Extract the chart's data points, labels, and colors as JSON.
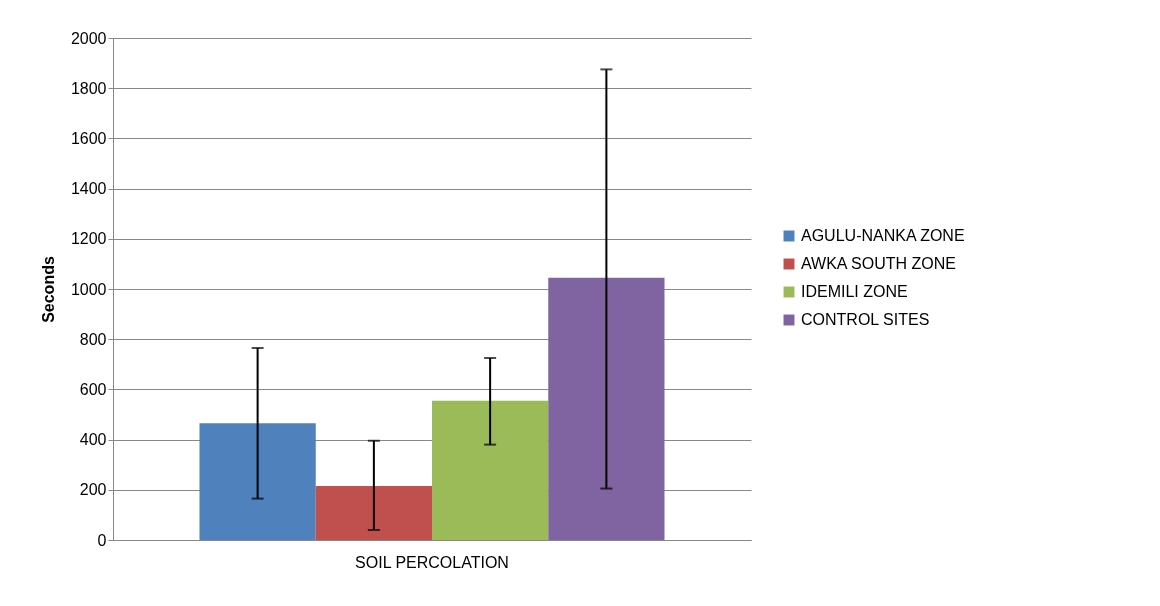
{
  "chart_data": {
    "type": "bar",
    "ylabel": "Seconds",
    "categories": [
      "SOIL PERCOLATION"
    ],
    "ylim": [
      0,
      2000
    ],
    "yticks": [
      0,
      200,
      400,
      600,
      800,
      1000,
      1200,
      1400,
      1600,
      1800,
      2000
    ],
    "grid": "y",
    "legend": "right",
    "series": [
      {
        "name": "AGULU-NANKA ZONE",
        "color": "#4f81bd",
        "values": [
          465
        ],
        "errors": [
          [
            165,
            765
          ]
        ]
      },
      {
        "name": "AWKA SOUTH ZONE",
        "color": "#c0504d",
        "values": [
          215
        ],
        "errors": [
          [
            40,
            395
          ]
        ]
      },
      {
        "name": "IDEMILI ZONE",
        "color": "#9bbb59",
        "values": [
          555
        ],
        "errors": [
          [
            380,
            725
          ]
        ]
      },
      {
        "name": "CONTROL SITES",
        "color": "#8064a2",
        "values": [
          1045
        ],
        "errors": [
          [
            205,
            1875
          ]
        ]
      }
    ]
  }
}
